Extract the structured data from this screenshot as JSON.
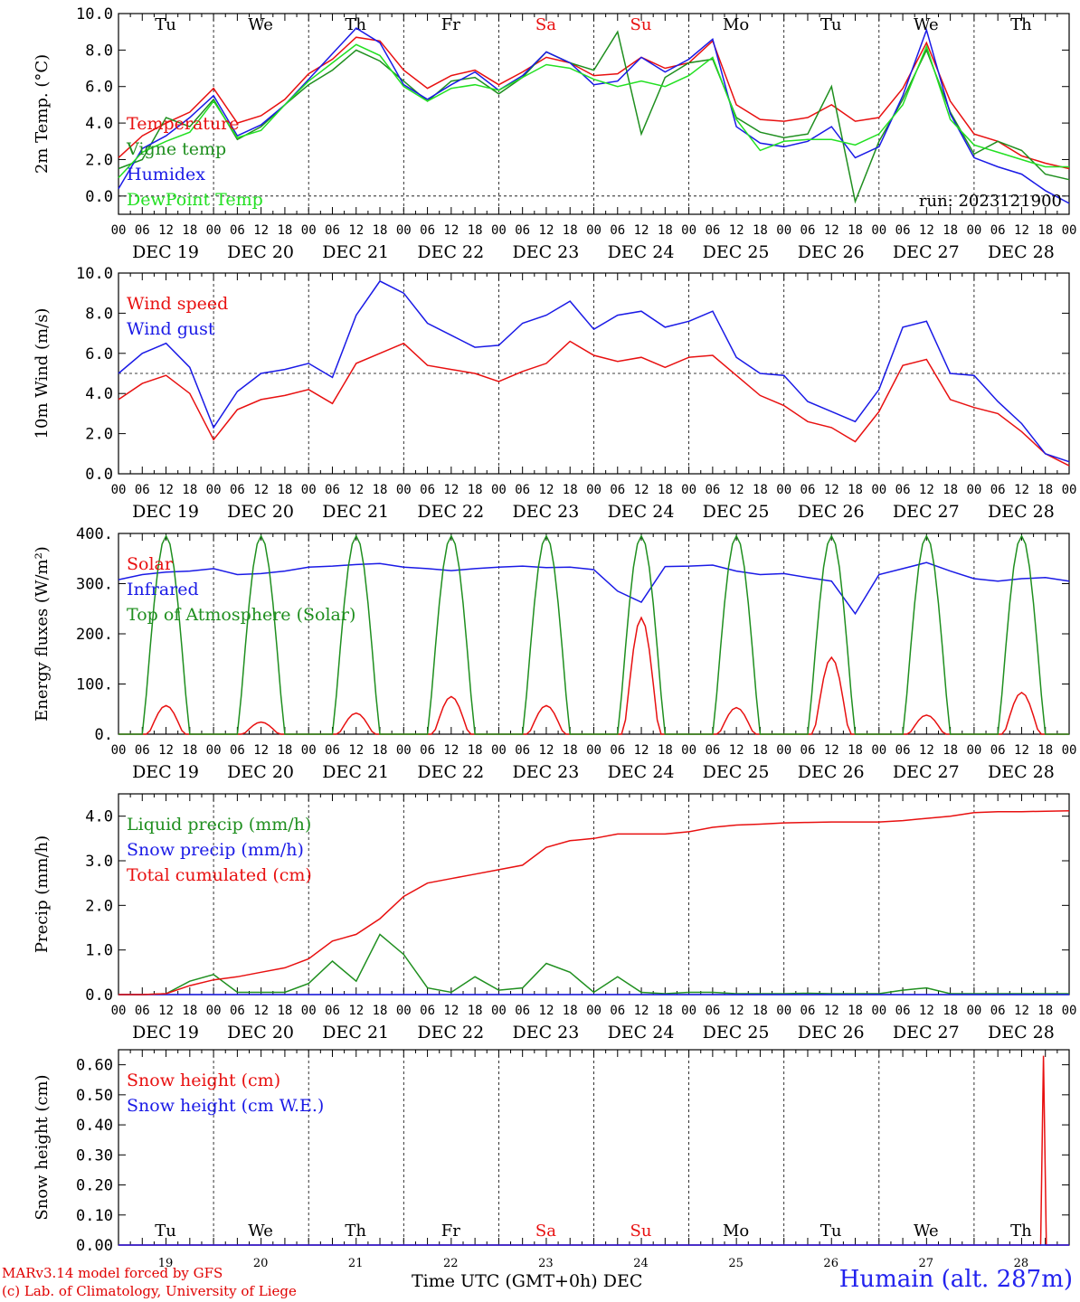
{
  "footer": {
    "model_credit": "MARv3.14 model forced by GFS",
    "lab_credit": "(c) Lab. of Climatology, University of Liege",
    "time_axis_label": "Time UTC (GMT+0h)",
    "month_label": "DEC",
    "station": "Humain (alt. 287m)"
  },
  "colors": {
    "red": "#e81010",
    "green": "#1f8f1f",
    "blue": "#1a1ae6",
    "lightgreen": "#22e022",
    "weekend": "#e81010"
  },
  "chart_data": [
    {
      "type": "line",
      "ylabel": "2m Temp. (°C)",
      "ylim": [
        -1,
        10
      ],
      "yticks": [
        "0.0",
        "2.0",
        "4.0",
        "6.0",
        "8.0",
        "10.0"
      ],
      "ytick_values": [
        0,
        2,
        4,
        6,
        8,
        10
      ],
      "dashed_reference": 0,
      "run_label": "run: 2023121900",
      "weekday_labels": [
        "Tu",
        "We",
        "Th",
        "Fr",
        "Sa",
        "Su",
        "Mo",
        "Tu",
        "We",
        "Th"
      ],
      "weekday_colors": [
        "#000",
        "#000",
        "#000",
        "#000",
        "#e81010",
        "#e81010",
        "#000",
        "#000",
        "#000",
        "#000"
      ],
      "x_hour_ticks": [
        "00",
        "06",
        "12",
        "18"
      ],
      "date_labels": [
        "DEC 19",
        "DEC 20",
        "DEC 21",
        "DEC 22",
        "DEC 23",
        "DEC 24",
        "DEC 25",
        "DEC 26",
        "DEC 27",
        "DEC 28"
      ],
      "x_days": [
        0,
        0.25,
        0.5,
        0.75,
        1,
        1.25,
        1.5,
        1.75,
        2,
        2.25,
        2.5,
        2.75,
        3,
        3.25,
        3.5,
        3.75,
        4,
        4.25,
        4.5,
        4.75,
        5,
        5.25,
        5.5,
        5.75,
        6,
        6.25,
        6.5,
        6.75,
        7,
        7.25,
        7.5,
        7.75,
        8,
        8.25,
        8.5,
        8.75,
        9,
        9.25,
        9.5,
        9.75,
        10
      ],
      "series": [
        {
          "name": "Temperature",
          "color": "#e81010",
          "values": [
            2.1,
            3.3,
            4.0,
            4.6,
            5.9,
            4.0,
            4.4,
            5.3,
            6.7,
            7.5,
            8.7,
            8.5,
            6.9,
            5.9,
            6.6,
            6.9,
            6.1,
            6.8,
            7.6,
            7.3,
            6.6,
            6.7,
            7.6,
            7.0,
            7.3,
            8.5,
            5.0,
            4.2,
            4.1,
            4.3,
            5.0,
            4.1,
            4.3,
            5.9,
            8.4,
            5.2,
            3.4,
            3.0,
            2.2,
            1.8,
            1.5
          ]
        },
        {
          "name": "Vigne temp",
          "color": "#1f8f1f",
          "values": [
            1.5,
            2.0,
            4.3,
            3.8,
            5.3,
            3.1,
            3.8,
            5.0,
            6.1,
            6.9,
            8.0,
            7.4,
            6.3,
            5.2,
            6.3,
            6.5,
            5.6,
            6.5,
            7.9,
            7.3,
            6.9,
            9.0,
            3.4,
            6.5,
            7.3,
            7.5,
            4.3,
            3.5,
            3.2,
            3.4,
            6.0,
            -0.3,
            3.0,
            5.3,
            8.0,
            4.6,
            2.3,
            3.0,
            2.5,
            1.2,
            0.9
          ]
        },
        {
          "name": "Humidex",
          "color": "#1a1ae6",
          "values": [
            0.4,
            2.6,
            3.3,
            4.3,
            5.5,
            3.3,
            3.9,
            5.0,
            6.4,
            7.8,
            9.2,
            8.4,
            6.1,
            5.3,
            6.1,
            6.8,
            5.8,
            6.6,
            7.9,
            7.3,
            6.1,
            6.3,
            7.6,
            6.8,
            7.5,
            8.6,
            3.8,
            2.9,
            2.7,
            3.0,
            3.8,
            2.1,
            2.7,
            5.5,
            9.1,
            4.5,
            2.1,
            1.6,
            1.2,
            0.3,
            -0.4
          ]
        },
        {
          "name": "DewPoint Temp",
          "color": "#22e022",
          "values": [
            1.0,
            2.4,
            3.0,
            3.5,
            5.2,
            3.2,
            3.6,
            5.0,
            6.3,
            7.3,
            8.3,
            7.7,
            6.0,
            5.2,
            5.9,
            6.1,
            5.8,
            6.5,
            7.2,
            7.0,
            6.4,
            6.0,
            6.3,
            6.0,
            6.6,
            7.6,
            4.2,
            2.5,
            3.0,
            3.1,
            3.1,
            2.8,
            3.4,
            5.0,
            8.2,
            4.2,
            2.8,
            2.4,
            2.0,
            1.6,
            1.6
          ]
        }
      ]
    },
    {
      "type": "line",
      "ylabel": "10m Wind (m/s)",
      "ylim": [
        0,
        10
      ],
      "yticks": [
        "0.0",
        "2.0",
        "4.0",
        "6.0",
        "8.0",
        "10.0"
      ],
      "ytick_values": [
        0,
        2,
        4,
        6,
        8,
        10
      ],
      "dashed_reference": 5,
      "x_hour_ticks": [
        "00",
        "06",
        "12",
        "18"
      ],
      "date_labels": [
        "DEC 19",
        "DEC 20",
        "DEC 21",
        "DEC 22",
        "DEC 23",
        "DEC 24",
        "DEC 25",
        "DEC 26",
        "DEC 27",
        "DEC 28"
      ],
      "x_days": [
        0,
        0.25,
        0.5,
        0.75,
        1,
        1.25,
        1.5,
        1.75,
        2,
        2.25,
        2.5,
        2.75,
        3,
        3.25,
        3.5,
        3.75,
        4,
        4.25,
        4.5,
        4.75,
        5,
        5.25,
        5.5,
        5.75,
        6,
        6.25,
        6.5,
        6.75,
        7,
        7.25,
        7.5,
        7.75,
        8,
        8.25,
        8.5,
        8.75,
        9,
        9.25,
        9.5,
        9.75,
        10
      ],
      "series": [
        {
          "name": "Wind speed",
          "color": "#e81010",
          "values": [
            3.7,
            4.5,
            4.9,
            4.0,
            1.7,
            3.2,
            3.7,
            3.9,
            4.2,
            3.5,
            5.5,
            6.0,
            6.5,
            5.4,
            5.2,
            5.0,
            4.6,
            5.1,
            5.5,
            6.6,
            5.9,
            5.6,
            5.8,
            5.3,
            5.8,
            5.9,
            4.9,
            3.9,
            3.4,
            2.6,
            2.3,
            1.6,
            3.1,
            5.4,
            5.7,
            3.7,
            3.3,
            3.0,
            2.1,
            1.0,
            0.4
          ]
        },
        {
          "name": "Wind gust",
          "color": "#1a1ae6",
          "values": [
            5.0,
            6.0,
            6.5,
            5.3,
            2.3,
            4.1,
            5.0,
            5.2,
            5.5,
            4.8,
            7.9,
            9.6,
            9.0,
            7.5,
            6.9,
            6.3,
            6.4,
            7.5,
            7.9,
            8.6,
            7.2,
            7.9,
            8.1,
            7.3,
            7.6,
            8.1,
            5.8,
            5.0,
            4.9,
            3.6,
            3.1,
            2.6,
            4.2,
            7.3,
            7.6,
            5.0,
            4.9,
            3.6,
            2.5,
            1.0,
            0.6
          ]
        }
      ]
    },
    {
      "type": "line",
      "ylabel": "Energy fluxes (W/m²)",
      "ylim": [
        0,
        400
      ],
      "yticks": [
        "0.",
        "100.",
        "200.",
        "300.",
        "400."
      ],
      "ytick_values": [
        0,
        100,
        200,
        300,
        400
      ],
      "x_hour_ticks": [
        "00",
        "06",
        "12",
        "18"
      ],
      "date_labels": [
        "DEC 19",
        "DEC 20",
        "DEC 21",
        "DEC 22",
        "DEC 23",
        "DEC 24",
        "DEC 25",
        "DEC 26",
        "DEC 27",
        "DEC 28"
      ],
      "x_days": [
        0,
        0.25,
        0.5,
        0.75,
        1,
        1.25,
        1.5,
        1.75,
        2,
        2.25,
        2.5,
        2.75,
        3,
        3.25,
        3.5,
        3.75,
        4,
        4.25,
        4.5,
        4.75,
        5,
        5.25,
        5.5,
        5.75,
        6,
        6.25,
        6.5,
        6.75,
        7,
        7.25,
        7.5,
        7.75,
        8,
        8.25,
        8.5,
        8.75,
        9,
        9.25,
        9.5,
        9.75,
        10
      ],
      "series": [
        {
          "name": "Solar",
          "color": "#e81010",
          "peak_day_hour": 12,
          "daily_peaks": [
            57,
            24,
            42,
            75,
            57,
            232,
            53,
            153,
            38,
            83
          ]
        },
        {
          "name": "Infrared",
          "color": "#1a1ae6",
          "values": [
            308,
            318,
            323,
            325,
            330,
            318,
            320,
            325,
            333,
            335,
            338,
            340,
            333,
            330,
            326,
            330,
            333,
            335,
            332,
            333,
            328,
            285,
            263,
            334,
            335,
            337,
            325,
            318,
            320,
            312,
            305,
            240,
            318,
            330,
            342,
            325,
            310,
            305,
            310,
            312,
            305
          ]
        },
        {
          "name": "Top of Atmosphere (Solar)",
          "color": "#1f8f1f",
          "peak_day_hour": 12,
          "daily_peaks": [
            395,
            395,
            395,
            395,
            395,
            395,
            395,
            395,
            395,
            395
          ]
        }
      ]
    },
    {
      "type": "line",
      "ylabel": "Precip (mm/h)",
      "ylim": [
        0,
        4.5
      ],
      "yticks": [
        "0.0",
        "1.0",
        "2.0",
        "3.0",
        "4.0"
      ],
      "ytick_values": [
        0,
        1,
        2,
        3,
        4
      ],
      "x_hour_ticks": [
        "00",
        "06",
        "12",
        "18"
      ],
      "date_labels": [
        "DEC 19",
        "DEC 20",
        "DEC 21",
        "DEC 22",
        "DEC 23",
        "DEC 24",
        "DEC 25",
        "DEC 26",
        "DEC 27",
        "DEC 28"
      ],
      "x_days": [
        0,
        0.25,
        0.5,
        0.75,
        1,
        1.25,
        1.5,
        1.75,
        2,
        2.25,
        2.5,
        2.75,
        3,
        3.25,
        3.5,
        3.75,
        4,
        4.25,
        4.5,
        4.75,
        5,
        5.25,
        5.5,
        5.75,
        6,
        6.25,
        6.5,
        6.75,
        7,
        7.25,
        7.5,
        7.75,
        8,
        8.25,
        8.5,
        8.75,
        9,
        9.25,
        9.5,
        9.75,
        10
      ],
      "series": [
        {
          "name": "Liquid precip (mm/h)",
          "color": "#1f8f1f",
          "values": [
            0,
            0,
            0.02,
            0.3,
            0.45,
            0.05,
            0.05,
            0.05,
            0.25,
            0.75,
            0.3,
            1.35,
            0.9,
            0.15,
            0.05,
            0.4,
            0.1,
            0.15,
            0.7,
            0.5,
            0.05,
            0.4,
            0.05,
            0.02,
            0.05,
            0.05,
            0.02,
            0.02,
            0.02,
            0.03,
            0.02,
            0.02,
            0.02,
            0.1,
            0.15,
            0.02,
            0.02,
            0.02,
            0.02,
            0.02,
            0.02
          ]
        },
        {
          "name": "Snow precip (mm/h)",
          "color": "#1a1ae6",
          "values": [
            0,
            0,
            0,
            0,
            0,
            0,
            0,
            0,
            0,
            0,
            0,
            0,
            0,
            0,
            0,
            0,
            0,
            0,
            0,
            0,
            0,
            0,
            0,
            0,
            0,
            0,
            0,
            0,
            0,
            0,
            0,
            0,
            0,
            0,
            0,
            0,
            0,
            0,
            0,
            0,
            0
          ]
        },
        {
          "name": "Total cumulated (cm)",
          "color": "#e81010",
          "values": [
            0,
            0,
            0.02,
            0.2,
            0.33,
            0.4,
            0.5,
            0.6,
            0.8,
            1.2,
            1.35,
            1.7,
            2.2,
            2.5,
            2.6,
            2.7,
            2.8,
            2.9,
            3.3,
            3.45,
            3.5,
            3.6,
            3.6,
            3.6,
            3.65,
            3.75,
            3.8,
            3.82,
            3.85,
            3.86,
            3.87,
            3.87,
            3.87,
            3.9,
            3.95,
            4.0,
            4.08,
            4.1,
            4.1,
            4.11,
            4.12
          ]
        }
      ]
    },
    {
      "type": "line",
      "ylabel": "Snow height (cm)",
      "ylim": [
        0,
        0.65
      ],
      "yticks": [
        "0.00",
        "0.10",
        "0.20",
        "0.30",
        "0.40",
        "0.50",
        "0.60"
      ],
      "ytick_values": [
        0,
        0.1,
        0.2,
        0.3,
        0.4,
        0.5,
        0.6
      ],
      "weekday_labels": [
        "Tu",
        "We",
        "Th",
        "Fr",
        "Sa",
        "Su",
        "Mo",
        "Tu",
        "We",
        "Th"
      ],
      "weekday_colors": [
        "#000",
        "#000",
        "#000",
        "#000",
        "#e81010",
        "#e81010",
        "#000",
        "#000",
        "#000",
        "#000"
      ],
      "day_numbers": [
        "19",
        "20",
        "21",
        "22",
        "23",
        "24",
        "25",
        "26",
        "27",
        "28"
      ],
      "x_days": [
        0,
        9.7,
        9.73,
        9.76,
        9.79,
        10
      ],
      "series": [
        {
          "name": "Snow height (cm)",
          "color": "#e81010",
          "values": [
            0,
            0,
            0.63,
            0,
            0,
            0
          ]
        },
        {
          "name": "Snow height (cm W.E.)",
          "color": "#1a1ae6",
          "values": [
            0,
            0,
            0,
            0,
            0,
            0
          ]
        }
      ]
    }
  ]
}
